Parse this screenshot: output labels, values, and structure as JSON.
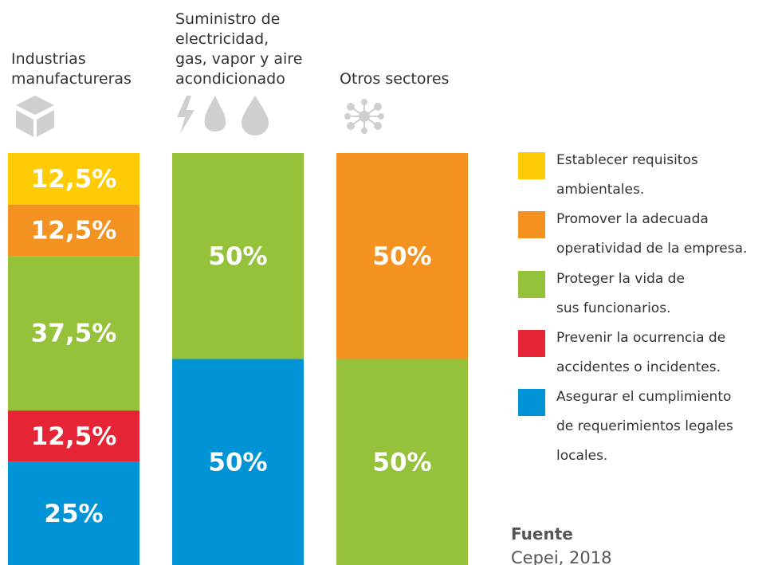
{
  "chart_data": {
    "type": "bar",
    "stacked": true,
    "categories": [
      "Industrias\nmanufactureras",
      "Suministro de\nelectricidad,\ngas, vapor y aire\nacondicionado",
      "Otros sectores"
    ],
    "series": [
      {
        "name": "Establecer requisitos\nambientales.",
        "color": "#ffcb05",
        "values": [
          12.5,
          0,
          0
        ],
        "value_labels": [
          "12,5%",
          null,
          null
        ]
      },
      {
        "name": "Promover la adecuada\noperatividad de la empresa.",
        "color": "#f39220",
        "values": [
          12.5,
          0,
          50
        ],
        "value_labels": [
          "12,5%",
          null,
          "50%"
        ]
      },
      {
        "name": "Proteger la vida de\nsus funcionarios.",
        "color": "#96c13b",
        "values": [
          37.5,
          50,
          50
        ],
        "value_labels": [
          "37,5%",
          "50%",
          "50%"
        ]
      },
      {
        "name": "Prevenir la ocurrencia de\naccidentes o incidentes.",
        "color": "#e52535",
        "values": [
          12.5,
          0,
          0
        ],
        "value_labels": [
          "12,5%",
          null,
          null
        ]
      },
      {
        "name": "Asegurar el cumplimiento\nde requerimientos legales\nlocales.",
        "color": "#0093d5",
        "values": [
          25,
          50,
          0
        ],
        "value_labels": [
          "25%",
          "50%",
          null
        ]
      }
    ],
    "source_label": "Fuente",
    "source": "Cepei, 2018"
  }
}
